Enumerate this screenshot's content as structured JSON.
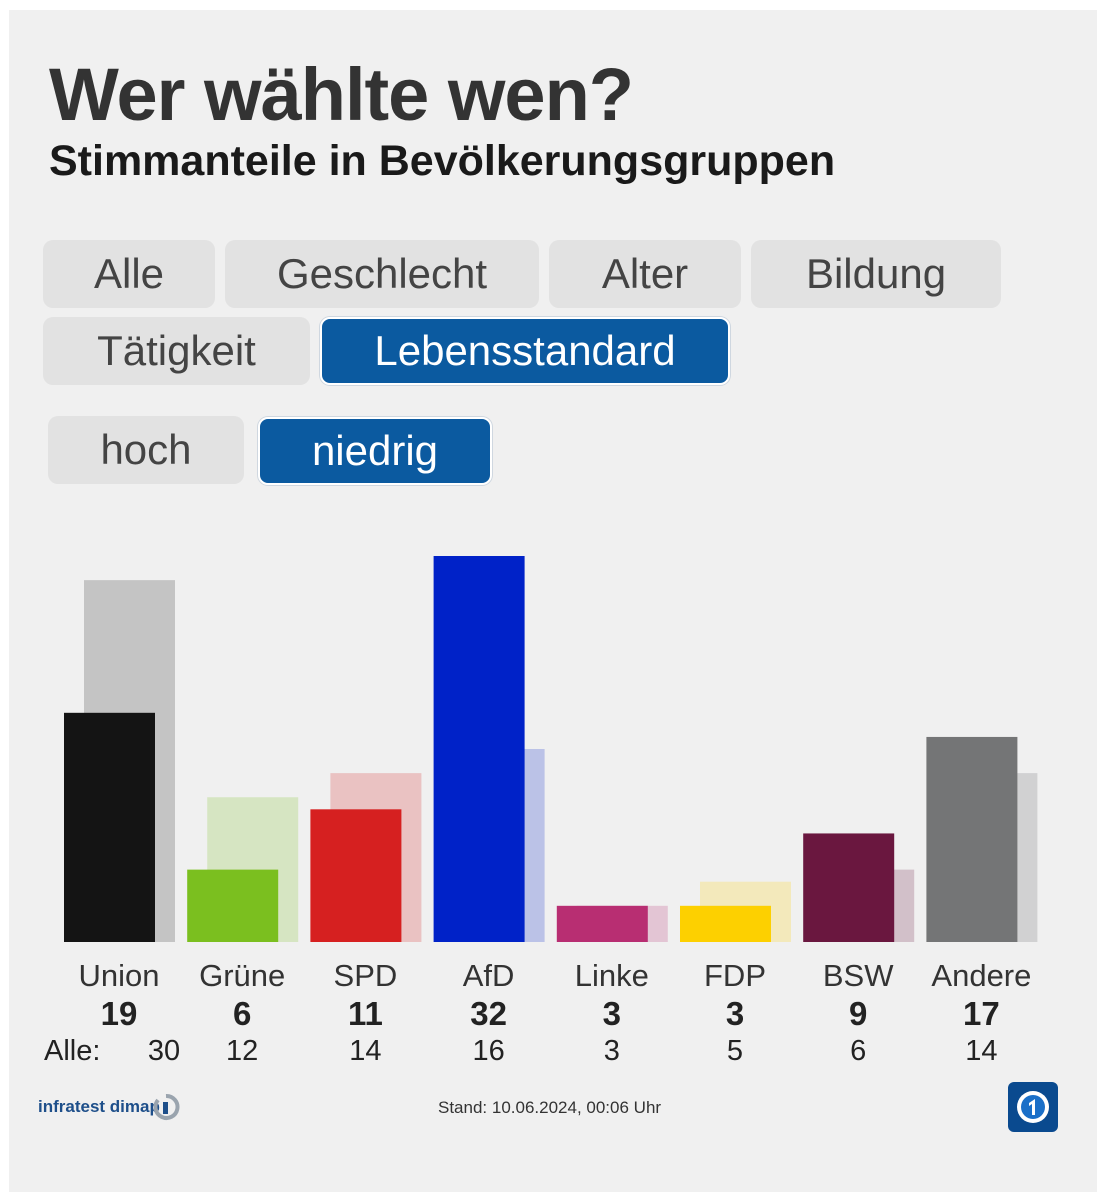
{
  "title": "Wer wählte wen?",
  "subtitle": "Stimmanteile in Bevölkerungsgruppen",
  "tabs": [
    {
      "label": "Alle",
      "active": false
    },
    {
      "label": "Geschlecht",
      "active": false
    },
    {
      "label": "Alter",
      "active": false
    },
    {
      "label": "Bildung",
      "active": false
    },
    {
      "label": "Tätigkeit",
      "active": false
    },
    {
      "label": "Lebensstandard",
      "active": true
    }
  ],
  "subtabs": [
    {
      "label": "hoch",
      "active": false
    },
    {
      "label": "niedrig",
      "active": true
    }
  ],
  "colors": {
    "active_tab": "#0b5aa0",
    "Union": "#141414",
    "Grüne": "#7bbf1f",
    "SPD": "#d62020",
    "AfD": "#0022c8",
    "Linke": "#b82e72",
    "FDP": "#fdd000",
    "BSW": "#6a173f",
    "Andere": "#747576"
  },
  "all_prefix": "Alle:",
  "source": "infratest dimap",
  "stand": "Stand: 10.06.2024, 00:06 Uhr",
  "chart_data": {
    "type": "bar",
    "categories": [
      "Union",
      "Grüne",
      "SPD",
      "AfD",
      "Linke",
      "FDP",
      "BSW",
      "Andere"
    ],
    "series": [
      {
        "name": "niedrig",
        "values": [
          19,
          6,
          11,
          32,
          3,
          3,
          9,
          17
        ]
      },
      {
        "name": "Alle",
        "values": [
          30,
          12,
          14,
          16,
          3,
          5,
          6,
          14
        ]
      }
    ],
    "ylim": [
      0,
      32
    ]
  }
}
